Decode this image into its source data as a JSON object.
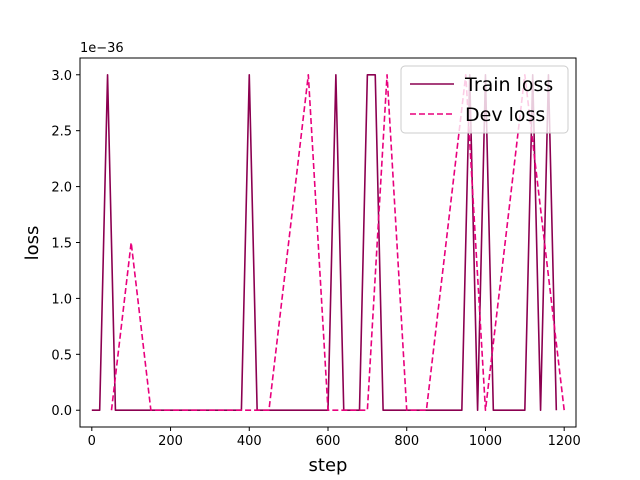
{
  "chart_data": {
    "type": "line",
    "title": "",
    "xlabel": "step",
    "ylabel": "loss",
    "y_offset_label": "1e−36",
    "xlim": [
      -30,
      1230
    ],
    "ylim": [
      -0.15,
      3.15
    ],
    "xticks": [
      0,
      200,
      400,
      600,
      800,
      1000,
      1200
    ],
    "xtick_labels": [
      "0",
      "200",
      "400",
      "600",
      "800",
      "1000",
      "1200"
    ],
    "yticks": [
      0.0,
      0.5,
      1.0,
      1.5,
      2.0,
      2.5,
      3.0
    ],
    "ytick_labels": [
      "0.0",
      "0.5",
      "1.0",
      "1.5",
      "2.0",
      "2.5",
      "3.0"
    ],
    "legend_position": "top-right",
    "series": [
      {
        "name": "Train loss",
        "color": "#8b0050",
        "style": "solid",
        "x": [
          0,
          20,
          40,
          60,
          80,
          100,
          120,
          140,
          160,
          180,
          200,
          220,
          240,
          260,
          280,
          300,
          320,
          340,
          360,
          380,
          400,
          420,
          440,
          460,
          480,
          500,
          520,
          540,
          560,
          580,
          600,
          620,
          640,
          660,
          680,
          700,
          720,
          740,
          760,
          780,
          800,
          820,
          840,
          860,
          880,
          900,
          920,
          940,
          960,
          980,
          1000,
          1020,
          1040,
          1060,
          1080,
          1100,
          1120,
          1140,
          1160,
          1180
        ],
        "y": [
          0,
          0,
          3.0,
          0,
          0,
          0,
          0,
          0,
          0,
          0,
          0,
          0,
          0,
          0,
          0,
          0,
          0,
          0,
          0,
          0,
          3.0,
          0,
          0,
          0,
          0,
          0,
          0,
          0,
          0,
          0,
          0,
          3.0,
          0,
          0,
          0,
          3.0,
          3.0,
          0,
          0,
          0,
          0,
          0,
          0,
          0,
          0,
          0,
          0,
          0,
          3.0,
          0,
          3.0,
          0,
          0,
          0,
          0,
          0,
          3.0,
          0,
          3.0,
          0
        ]
      },
      {
        "name": "Dev loss",
        "color": "#e8007d",
        "style": "dashed",
        "x": [
          50,
          100,
          150,
          200,
          250,
          300,
          350,
          400,
          450,
          500,
          550,
          600,
          650,
          700,
          750,
          800,
          850,
          900,
          950,
          1000,
          1050,
          1100,
          1150,
          1200
        ],
        "y": [
          0,
          1.5,
          0,
          0,
          0,
          0,
          0,
          0,
          0,
          1.5,
          3.0,
          0,
          0,
          0,
          3.0,
          0,
          0,
          1.5,
          3.0,
          0,
          1.5,
          3.0,
          1.5,
          0
        ]
      }
    ]
  }
}
